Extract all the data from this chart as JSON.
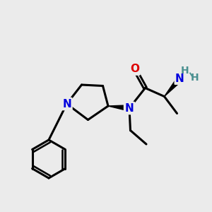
{
  "bg_color": "#ebebeb",
  "atom_colors": {
    "C": "#000000",
    "N": "#0000dd",
    "O": "#dd0000",
    "H": "#4a9090"
  },
  "bond_color": "#000000",
  "bond_width": 2.2,
  "fig_width": 3.0,
  "fig_height": 3.0,
  "dpi": 100,
  "xlim": [
    0,
    10
  ],
  "ylim": [
    0,
    10
  ]
}
